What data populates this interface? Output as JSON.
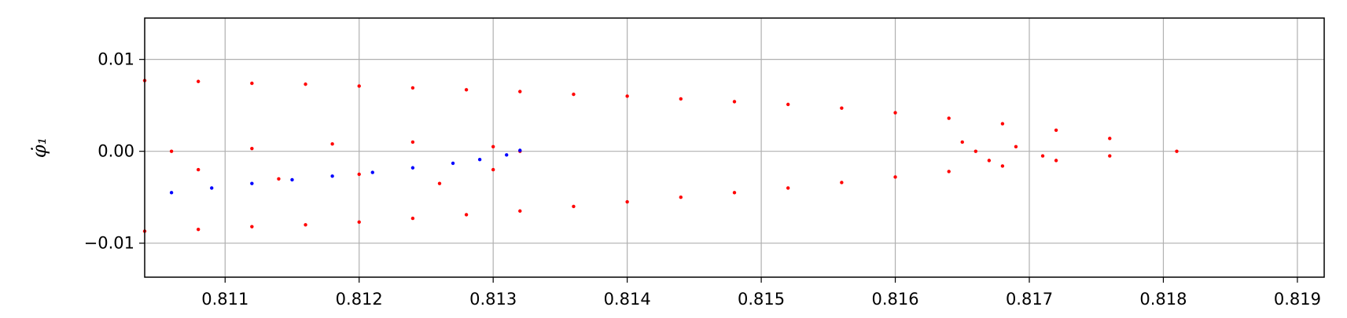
{
  "chart_data": {
    "type": "scatter",
    "title": "",
    "xlabel": "",
    "ylabel": "φ̇₁",
    "xlim": [
      0.8104,
      0.8192
    ],
    "ylim": [
      -0.0137,
      0.0145
    ],
    "x_ticks": [
      0.811,
      0.812,
      0.813,
      0.814,
      0.815,
      0.816,
      0.817,
      0.818,
      0.819
    ],
    "x_tick_labels": [
      "0.811",
      "0.812",
      "0.813",
      "0.814",
      "0.815",
      "0.816",
      "0.817",
      "0.818",
      "0.819"
    ],
    "y_ticks": [
      0.01,
      0.0,
      -0.01
    ],
    "y_tick_labels": [
      "0.01",
      "0.00",
      "−0.01"
    ],
    "grid": true,
    "legend": "none",
    "series": [
      {
        "color": "#ff0000",
        "marker": "dot",
        "description_points": "Poincaré-section cloud: a horseshoe/parabola opening left with tip at x≈0.8181, y≈0; upper arm from (0.8104, 0.0077) to tip, lower arm from (0.8104, -0.0087) to tip; dense cluster 0.8165–0.8172; scattered fill -0.005…0 for x 0.8104–0.8132; thin loop around y≈0 from 0.8106 to 0.8132",
        "points": [
          [
            0.8104,
            0.0077
          ],
          [
            0.8108,
            0.0076
          ],
          [
            0.8112,
            0.0074
          ],
          [
            0.8116,
            0.0073
          ],
          [
            0.812,
            0.0071
          ],
          [
            0.8124,
            0.0069
          ],
          [
            0.8128,
            0.0067
          ],
          [
            0.8132,
            0.0065
          ],
          [
            0.8136,
            0.0062
          ],
          [
            0.814,
            0.006
          ],
          [
            0.8144,
            0.0057
          ],
          [
            0.8148,
            0.0054
          ],
          [
            0.8152,
            0.0051
          ],
          [
            0.8156,
            0.0047
          ],
          [
            0.816,
            0.0042
          ],
          [
            0.8164,
            0.0036
          ],
          [
            0.8168,
            0.003
          ],
          [
            0.8172,
            0.0023
          ],
          [
            0.8176,
            0.0014
          ],
          [
            0.8181,
            0.0
          ],
          [
            0.8104,
            -0.0087
          ],
          [
            0.8108,
            -0.0085
          ],
          [
            0.8112,
            -0.0082
          ],
          [
            0.8116,
            -0.008
          ],
          [
            0.812,
            -0.0077
          ],
          [
            0.8124,
            -0.0073
          ],
          [
            0.8128,
            -0.0069
          ],
          [
            0.8132,
            -0.0065
          ],
          [
            0.8136,
            -0.006
          ],
          [
            0.814,
            -0.0055
          ],
          [
            0.8144,
            -0.005
          ],
          [
            0.8148,
            -0.0045
          ],
          [
            0.8152,
            -0.004
          ],
          [
            0.8156,
            -0.0034
          ],
          [
            0.816,
            -0.0028
          ],
          [
            0.8164,
            -0.0022
          ],
          [
            0.8168,
            -0.0016
          ],
          [
            0.8172,
            -0.001
          ],
          [
            0.8176,
            -0.0005
          ],
          [
            0.8165,
            0.001
          ],
          [
            0.8167,
            -0.001
          ],
          [
            0.8169,
            0.0005
          ],
          [
            0.8171,
            -0.0005
          ],
          [
            0.8166,
            0.0
          ],
          [
            0.8106,
            0.0
          ],
          [
            0.8112,
            0.0003
          ],
          [
            0.8118,
            0.0008
          ],
          [
            0.8124,
            0.001
          ],
          [
            0.813,
            0.0005
          ],
          [
            0.8132,
            0.0
          ],
          [
            0.8108,
            -0.002
          ],
          [
            0.8114,
            -0.003
          ],
          [
            0.812,
            -0.0025
          ],
          [
            0.8126,
            -0.0035
          ],
          [
            0.813,
            -0.002
          ]
        ]
      },
      {
        "color": "#0000ff",
        "marker": "dot",
        "description_points": "thin curve from about (0.8106, -0.0045) rising to (0.8132, 0.0001)",
        "points": [
          [
            0.8106,
            -0.0045
          ],
          [
            0.8109,
            -0.004
          ],
          [
            0.8112,
            -0.0035
          ],
          [
            0.8115,
            -0.0031
          ],
          [
            0.8118,
            -0.0027
          ],
          [
            0.8121,
            -0.0023
          ],
          [
            0.8124,
            -0.0018
          ],
          [
            0.8127,
            -0.0013
          ],
          [
            0.8129,
            -0.0009
          ],
          [
            0.8131,
            -0.0004
          ],
          [
            0.8132,
            0.0001
          ]
        ]
      }
    ]
  }
}
